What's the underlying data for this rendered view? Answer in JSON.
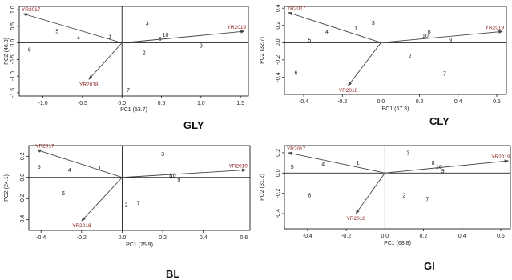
{
  "chart_data": [
    {
      "type": "scatter",
      "title": "GLY",
      "xlabel": "PC1 (53.7)",
      "ylabel": "PC2 (46.3)",
      "xlim": [
        -1.3,
        1.6
      ],
      "ylim": [
        -1.6,
        1.1
      ],
      "xticks": [
        -1.0,
        -0.5,
        0.0,
        0.5,
        1.0,
        1.5
      ],
      "xtick_labels": [
        "-1.0",
        "-0.5",
        "0.0",
        "0.5",
        "1.0",
        "1.5"
      ],
      "yticks": [
        -1.5,
        -1.0,
        -0.5,
        0.0,
        0.5,
        1.0
      ],
      "ytick_labels": [
        "-1.5",
        "-1.0",
        "-0.5",
        "0.0",
        "0.5",
        "1.0"
      ],
      "genotypes": [
        {
          "label": "1",
          "x": -0.15,
          "y": 0.18,
          "color": "#222"
        },
        {
          "label": "2",
          "x": 0.28,
          "y": -0.3,
          "color": "#222"
        },
        {
          "label": "3",
          "x": 0.32,
          "y": 0.59,
          "color": "#222"
        },
        {
          "label": "4",
          "x": -0.55,
          "y": 0.16,
          "color": "#222"
        },
        {
          "label": "5",
          "x": -0.82,
          "y": 0.35,
          "color": "#222"
        },
        {
          "label": "6",
          "x": -1.17,
          "y": -0.2,
          "color": "#222"
        },
        {
          "label": "7",
          "x": 0.08,
          "y": -1.42,
          "color": "#222"
        },
        {
          "label": "8",
          "x": 0.48,
          "y": 0.12,
          "color": "#222"
        },
        {
          "label": "9",
          "x": 1.0,
          "y": -0.08,
          "color": "#222"
        },
        {
          "label": "10",
          "x": 0.55,
          "y": 0.24,
          "color": "#222"
        }
      ],
      "vectors": [
        {
          "label": "YR2017",
          "x": -1.25,
          "y": 0.88
        },
        {
          "label": "YR2018",
          "x": -0.42,
          "y": -1.1
        },
        {
          "label": "YR2019",
          "x": 1.55,
          "y": 0.35
        }
      ]
    },
    {
      "type": "scatter",
      "title": "CLY",
      "xlabel": "PC1 (67.3)",
      "ylabel": "PC2 (32.7)",
      "xlim": [
        -0.5,
        0.65
      ],
      "ylim": [
        -0.6,
        0.42
      ],
      "xticks": [
        -0.4,
        -0.2,
        0.0,
        0.2,
        0.4,
        0.6
      ],
      "xtick_labels": [
        "-0.4",
        "-0.2",
        "0.0",
        "0.2",
        "0.4",
        "0.6"
      ],
      "yticks": [
        -0.4,
        -0.2,
        0.0,
        0.2,
        0.4
      ],
      "ytick_labels": [
        "-0.4",
        "-0.2",
        "0.0",
        "0.2",
        "0.4"
      ],
      "genotypes": [
        {
          "label": "1",
          "x": -0.13,
          "y": 0.17,
          "color": "#222"
        },
        {
          "label": "2",
          "x": 0.15,
          "y": -0.15,
          "color": "#222"
        },
        {
          "label": "3",
          "x": -0.04,
          "y": 0.23,
          "color": "#222"
        },
        {
          "label": "4",
          "x": -0.28,
          "y": 0.13,
          "color": "#222"
        },
        {
          "label": "5",
          "x": -0.37,
          "y": 0.03,
          "color": "#222"
        },
        {
          "label": "6",
          "x": -0.44,
          "y": -0.35,
          "color": "#222"
        },
        {
          "label": "7",
          "x": 0.33,
          "y": -0.36,
          "color": "#222"
        },
        {
          "label": "8",
          "x": 0.25,
          "y": 0.13,
          "color": "#222"
        },
        {
          "label": "9",
          "x": 0.36,
          "y": 0.03,
          "color": "#222"
        },
        {
          "label": "10",
          "x": 0.23,
          "y": 0.08,
          "color": "#222"
        }
      ],
      "vectors": [
        {
          "label": "YR2017",
          "x": -0.48,
          "y": 0.35
        },
        {
          "label": "YR2018",
          "x": -0.17,
          "y": -0.5
        },
        {
          "label": "YR2019",
          "x": 0.63,
          "y": 0.13
        }
      ]
    },
    {
      "type": "scatter",
      "title": "BL",
      "xlabel": "PC1 (75.9)",
      "ylabel": "PC2 (24.1)",
      "xlim": [
        -0.46,
        0.63
      ],
      "ylim": [
        -0.5,
        0.3
      ],
      "xticks": [
        -0.4,
        -0.2,
        0.0,
        0.2,
        0.4,
        0.6
      ],
      "xtick_labels": [
        "-0.4",
        "-0.2",
        "0.0",
        "0.2",
        "0.4",
        "0.6"
      ],
      "yticks": [
        -0.4,
        -0.2,
        0.0,
        0.2
      ],
      "ytick_labels": [
        "-0.4",
        "-0.2",
        "0.0",
        "0.2"
      ],
      "genotypes": [
        {
          "label": "1",
          "x": -0.11,
          "y": 0.09,
          "color": "#222"
        },
        {
          "label": "2",
          "x": 0.02,
          "y": -0.26,
          "color": "#222"
        },
        {
          "label": "3",
          "x": 0.2,
          "y": 0.22,
          "color": "#222"
        },
        {
          "label": "4",
          "x": -0.26,
          "y": 0.07,
          "color": "#1f3a8a"
        },
        {
          "label": "5",
          "x": -0.41,
          "y": 0.1,
          "color": "#222"
        },
        {
          "label": "6",
          "x": -0.29,
          "y": -0.15,
          "color": "#222"
        },
        {
          "label": "7",
          "x": 0.08,
          "y": -0.24,
          "color": "#222"
        },
        {
          "label": "8",
          "x": 0.24,
          "y": 0.02,
          "color": "#1f3a8a"
        },
        {
          "label": "9",
          "x": 0.28,
          "y": -0.02,
          "color": "#1f3a8a"
        },
        {
          "label": "10",
          "x": 0.25,
          "y": 0.02,
          "color": "#1f3a8a"
        }
      ],
      "vectors": [
        {
          "label": "YR2017",
          "x": -0.42,
          "y": 0.26
        },
        {
          "label": "YR2018",
          "x": -0.2,
          "y": -0.41
        },
        {
          "label": "YR2019",
          "x": 0.61,
          "y": 0.07
        }
      ]
    },
    {
      "type": "scatter",
      "title": "GI",
      "xlabel": "PC1 (68.8)",
      "ylabel": "PC2 (31.2)",
      "xlim": [
        -0.52,
        0.65
      ],
      "ylim": [
        -0.55,
        0.27
      ],
      "xticks": [
        -0.4,
        -0.2,
        0.0,
        0.2,
        0.4,
        0.6
      ],
      "xtick_labels": [
        "-0.4",
        "-0.2",
        "0.0",
        "0.2",
        "0.4",
        "0.6"
      ],
      "yticks": [
        -0.4,
        -0.2,
        0.0,
        0.2
      ],
      "ytick_labels": [
        "-0.4",
        "-0.2",
        "0.0",
        "0.2"
      ],
      "genotypes": [
        {
          "label": "1",
          "x": -0.14,
          "y": 0.1,
          "color": "#222"
        },
        {
          "label": "2",
          "x": 0.1,
          "y": -0.22,
          "color": "#222"
        },
        {
          "label": "3",
          "x": 0.12,
          "y": 0.2,
          "color": "#222"
        },
        {
          "label": "4",
          "x": -0.32,
          "y": 0.09,
          "color": "#1f3a8a"
        },
        {
          "label": "5",
          "x": -0.48,
          "y": 0.06,
          "color": "#222"
        },
        {
          "label": "6",
          "x": -0.39,
          "y": -0.22,
          "color": "#1f3a8a"
        },
        {
          "label": "7",
          "x": 0.22,
          "y": -0.26,
          "color": "#222"
        },
        {
          "label": "8",
          "x": 0.25,
          "y": 0.1,
          "color": "#222"
        },
        {
          "label": "9",
          "x": 0.3,
          "y": 0.02,
          "color": "#222"
        },
        {
          "label": "10",
          "x": 0.28,
          "y": 0.06,
          "color": "#1f3a8a"
        }
      ],
      "vectors": [
        {
          "label": "YR2017",
          "x": -0.5,
          "y": 0.2
        },
        {
          "label": "YR2018",
          "x": -0.15,
          "y": -0.4
        },
        {
          "label": "YR2019",
          "x": 0.64,
          "y": 0.12
        }
      ]
    }
  ]
}
